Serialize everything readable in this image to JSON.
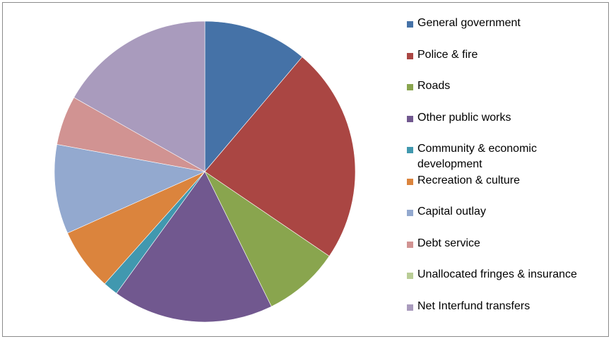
{
  "chart_data": {
    "type": "pie",
    "title": "",
    "start_angle": "12 o'clock",
    "direction": "clockwise",
    "legend_position": "right",
    "series": [
      {
        "name": "General government",
        "value": 11.2,
        "color": "#4572a7"
      },
      {
        "name": "Police & fire",
        "value": 23.3,
        "color": "#aa4643"
      },
      {
        "name": "Roads",
        "value": 8.2,
        "color": "#89a54e"
      },
      {
        "name": "Other public works",
        "value": 17.3,
        "color": "#71588f"
      },
      {
        "name": "Community & economic development",
        "value": 1.6,
        "color": "#4198af"
      },
      {
        "name": "Recreation & culture",
        "value": 6.7,
        "color": "#db843d"
      },
      {
        "name": "Capital outlay",
        "value": 9.6,
        "color": "#93a9cf"
      },
      {
        "name": "Debt service",
        "value": 5.3,
        "color": "#d19392"
      },
      {
        "name": "Unallocated fringes & insurance",
        "value": 0,
        "color": "#b9cd96"
      },
      {
        "name": "Net Interfund transfers",
        "value": 16.8,
        "color": "#a99bbd"
      }
    ]
  }
}
